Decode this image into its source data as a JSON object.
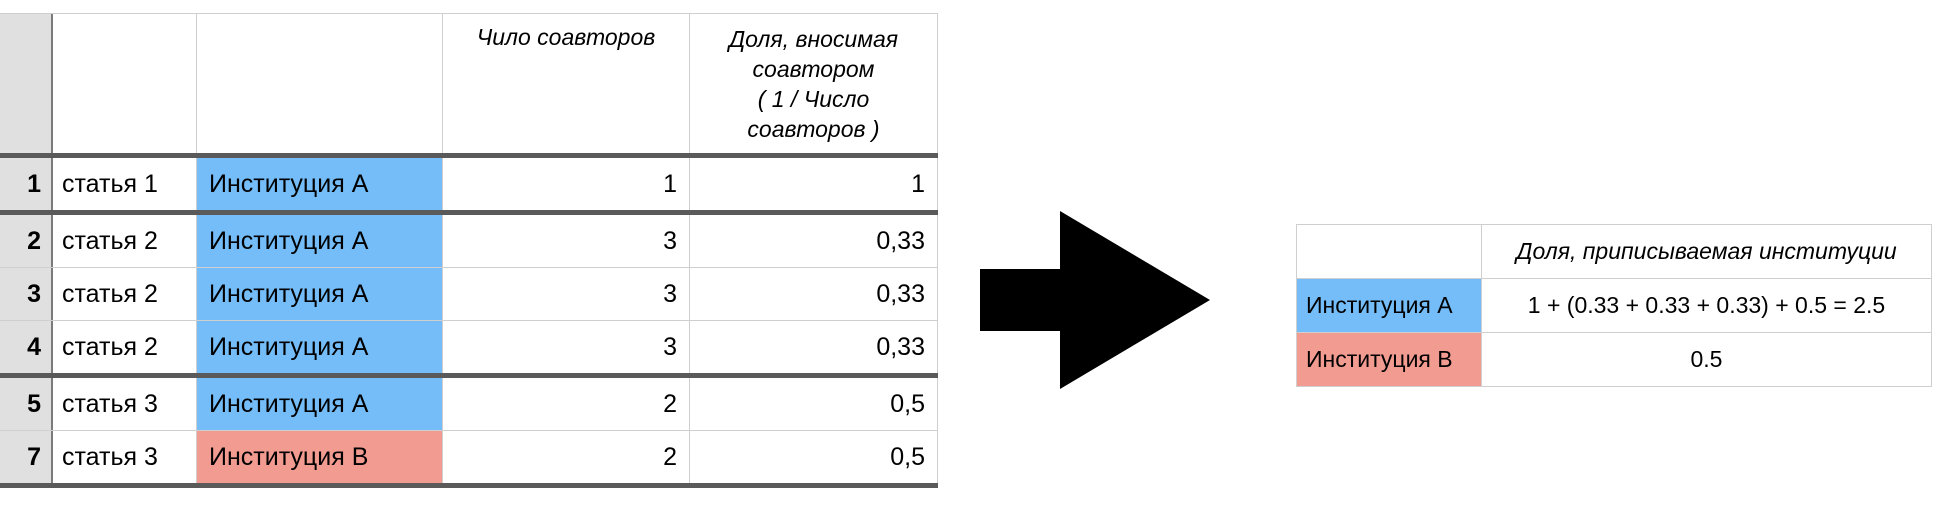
{
  "left_table": {
    "headers": {
      "coauthors": "Чило соавторов",
      "share_line1": "Доля, вносимая",
      "share_line2": "соавтором",
      "share_line3": "( 1 / Число",
      "share_line4": "соавторов )"
    },
    "rows": [
      {
        "num": "1",
        "article": "статья 1",
        "institution": "Институция А",
        "inst_color": "#74bdf8",
        "coauthors": "1",
        "share": "1"
      },
      {
        "num": "2",
        "article": "статья 2",
        "institution": "Институция А",
        "inst_color": "#74bdf8",
        "coauthors": "3",
        "share": "0,33"
      },
      {
        "num": "3",
        "article": "статья 2",
        "institution": "Институция А",
        "inst_color": "#74bdf8",
        "coauthors": "3",
        "share": "0,33"
      },
      {
        "num": "4",
        "article": "статья 2",
        "institution": "Институция А",
        "inst_color": "#74bdf8",
        "coauthors": "3",
        "share": "0,33"
      },
      {
        "num": "5",
        "article": "статья 3",
        "institution": "Институция А",
        "inst_color": "#74bdf8",
        "coauthors": "2",
        "share": "0,5"
      },
      {
        "num": "7",
        "article": "статья 3",
        "institution": "Институция В",
        "inst_color": "#f29b90",
        "coauthors": "2",
        "share": "0,5"
      }
    ]
  },
  "arrow": {
    "icon": "right-arrow-icon",
    "color": "#000000"
  },
  "right_table": {
    "header": "Доля, приписываемая институции",
    "rows": [
      {
        "institution": "Институция А",
        "inst_color": "#74bdf8",
        "value": "1 + (0.33 + 0.33 + 0.33) + 0.5 = 2.5"
      },
      {
        "institution": "Институция В",
        "inst_color": "#f29b90",
        "value": "0.5"
      }
    ]
  }
}
